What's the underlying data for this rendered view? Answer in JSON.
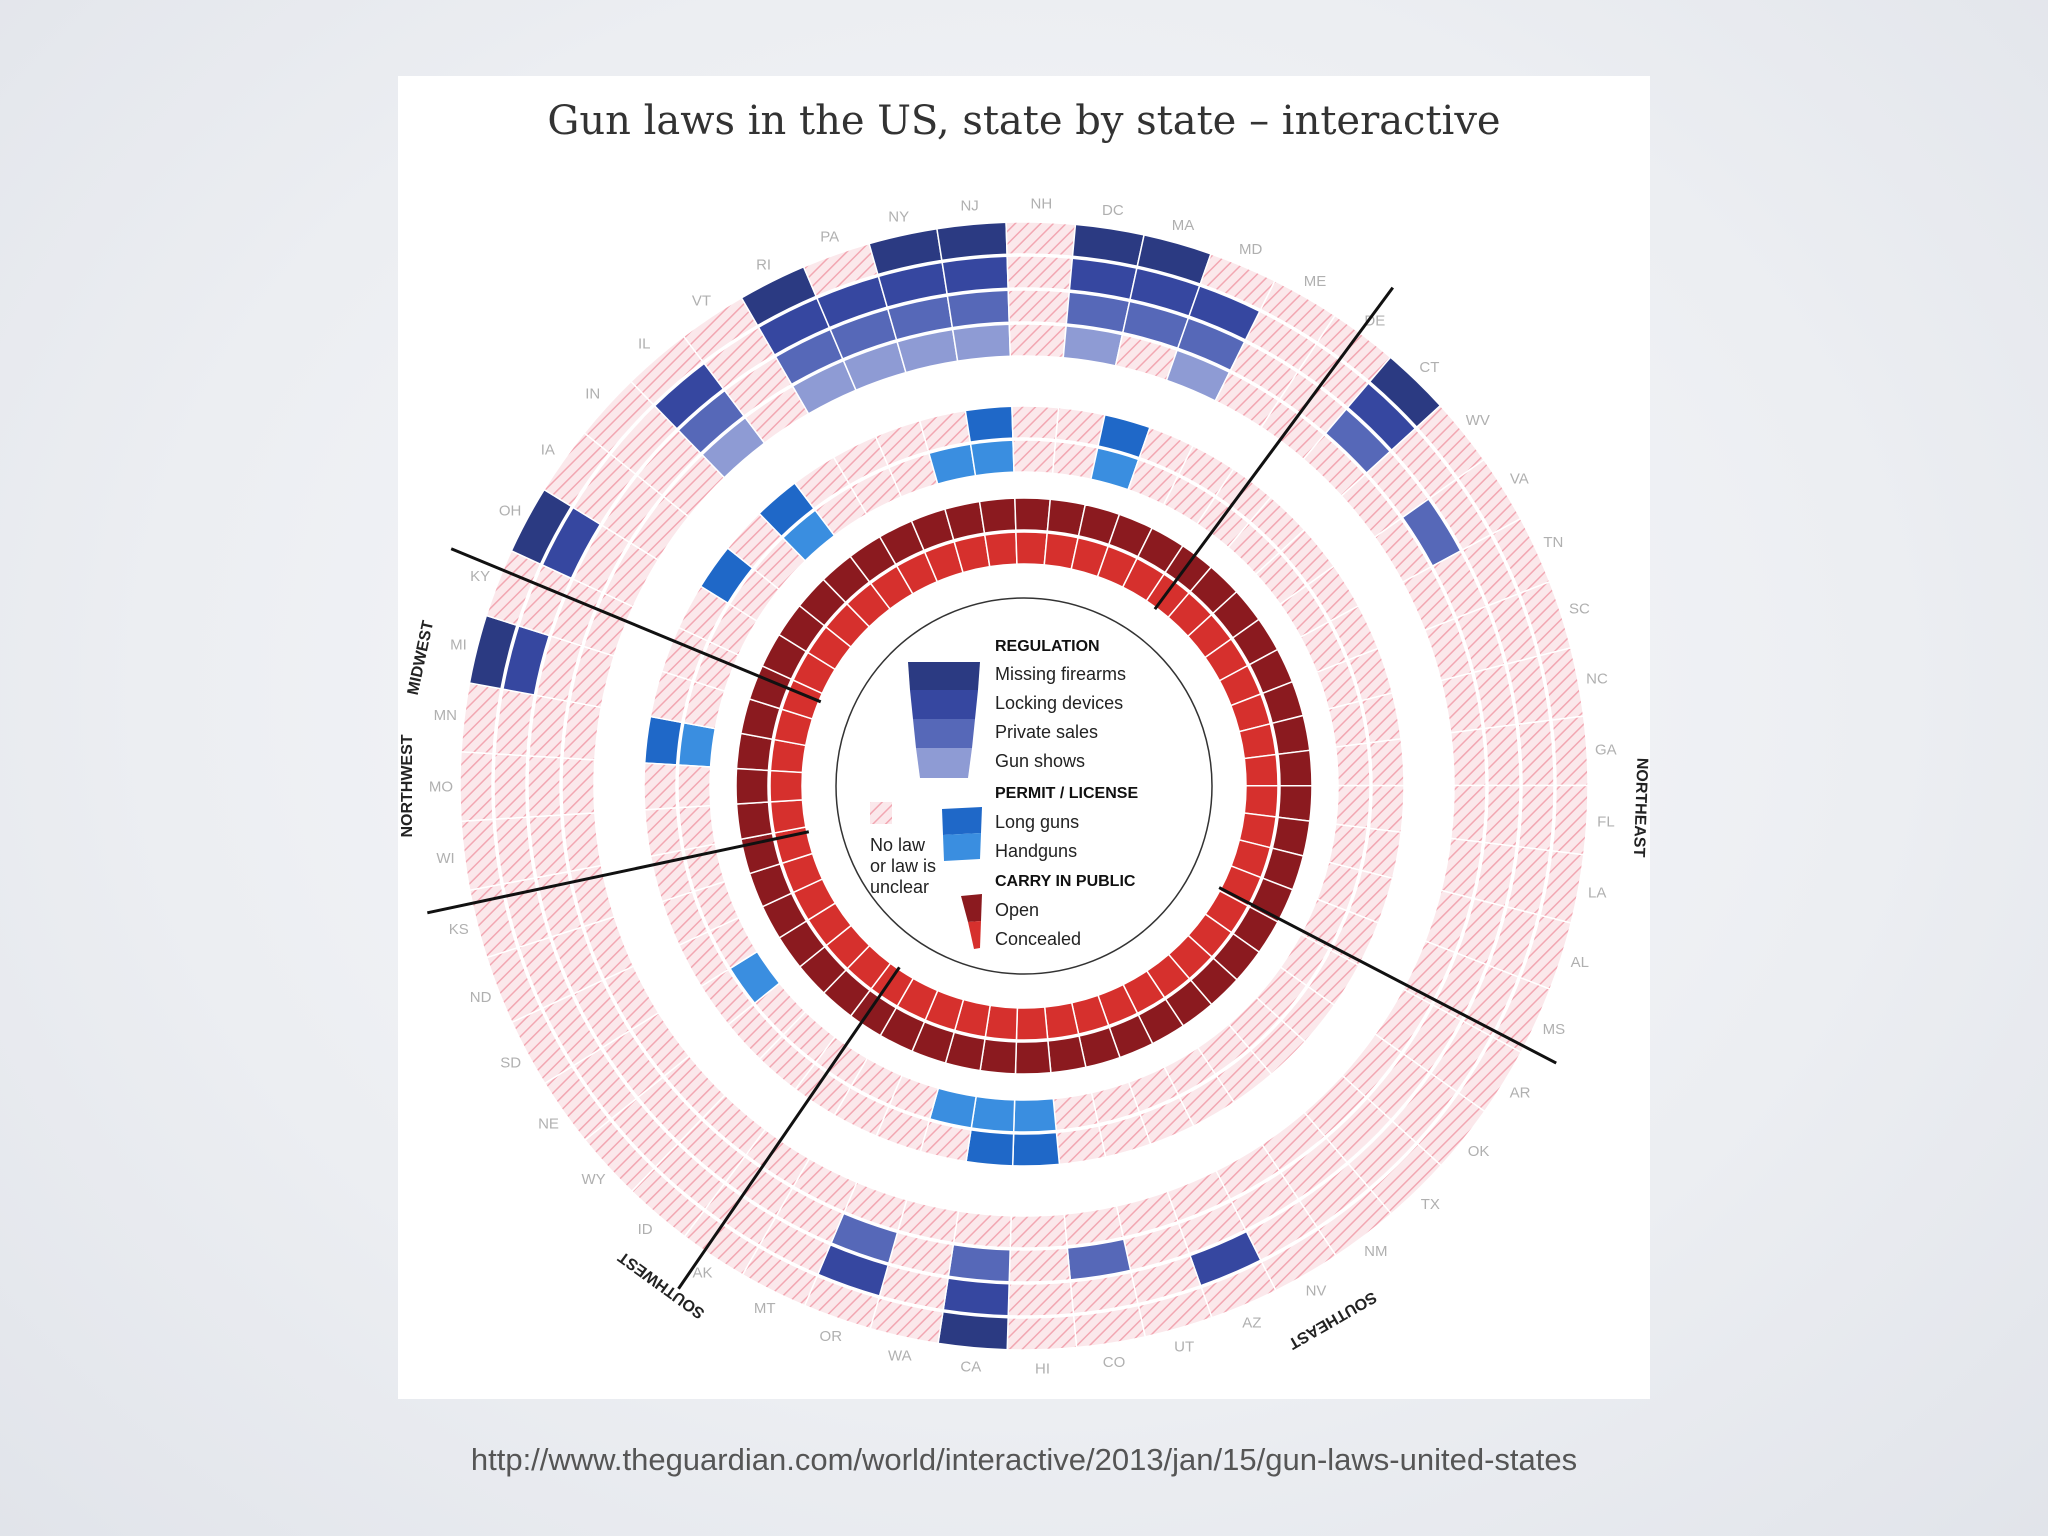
{
  "title": "Gun laws in the US, state by state – interactive",
  "source_url": "http://www.theguardian.com/world/interactive/2013/jan/15/gun-laws-united-states",
  "colors": {
    "no_law": "#f6d3d8",
    "no_law_hatch": "#f2a7b2",
    "regulation": [
      "#2b3a82",
      "#3647a0",
      "#5668b8",
      "#8e9bd4"
    ],
    "permit": [
      "#1f68c8",
      "#3a8ee0"
    ],
    "carry": [
      "#8b1a1f",
      "#d6302d"
    ],
    "permit_light": "#6fb0ee"
  },
  "chart_data": {
    "type": "radial-heatmap",
    "title": "Gun laws in the US, state by state – interactive",
    "regions": [
      "MIDWEST",
      "NORTHEAST",
      "SOUTHEAST",
      "SOUTHWEST",
      "NORTHWEST"
    ],
    "states": [
      "MN",
      "MI",
      "KY",
      "OH",
      "IA",
      "IN",
      "IL",
      "VT",
      "RI",
      "PA",
      "NY",
      "NJ",
      "NH",
      "DC",
      "MA",
      "MD",
      "ME",
      "DE",
      "CT",
      "WV",
      "VA",
      "TN",
      "SC",
      "NC",
      "GA",
      "FL",
      "LA",
      "AL",
      "MS",
      "AR",
      "OK",
      "TX",
      "NM",
      "NV",
      "AZ",
      "UT",
      "CO",
      "HI",
      "CA",
      "WA",
      "OR",
      "MT",
      "AK",
      "ID",
      "WY",
      "NE",
      "SD",
      "ND",
      "KS",
      "WI",
      "MO"
    ],
    "rings": [
      {
        "group": "REGULATION",
        "name": "Missing firearms"
      },
      {
        "group": "REGULATION",
        "name": "Locking devices"
      },
      {
        "group": "REGULATION",
        "name": "Private sales"
      },
      {
        "group": "REGULATION",
        "name": "Gun shows"
      },
      {
        "group": "PERMIT / LICENSE",
        "name": "Long guns"
      },
      {
        "group": "PERMIT / LICENSE",
        "name": "Handguns"
      },
      {
        "group": "CARRY IN PUBLIC",
        "name": "Open"
      },
      {
        "group": "CARRY IN PUBLIC",
        "name": "Concealed"
      }
    ],
    "laws": {
      "MI": [
        1,
        1,
        0,
        0,
        0,
        0,
        1,
        1
      ],
      "OH": [
        1,
        1,
        0,
        0,
        0,
        0,
        1,
        1
      ],
      "IL": [
        0,
        1,
        1,
        1,
        1,
        1,
        1,
        1
      ],
      "RI": [
        1,
        1,
        1,
        1,
        0,
        0,
        1,
        1
      ],
      "PA": [
        0,
        1,
        1,
        1,
        0,
        0,
        1,
        1
      ],
      "NY": [
        1,
        1,
        1,
        1,
        0,
        1,
        1,
        1
      ],
      "NJ": [
        1,
        1,
        1,
        1,
        1,
        1,
        1,
        1
      ],
      "DC": [
        1,
        1,
        1,
        1,
        0,
        0,
        1,
        1
      ],
      "MA": [
        1,
        1,
        1,
        0,
        1,
        1,
        1,
        1
      ],
      "MD": [
        0,
        1,
        1,
        1,
        0,
        0,
        1,
        1
      ],
      "CT": [
        1,
        1,
        1,
        0,
        0,
        0,
        1,
        1
      ],
      "VA": [
        0,
        0,
        1,
        0,
        0,
        0,
        1,
        1
      ],
      "AL": [
        0,
        0,
        0,
        0,
        0,
        0,
        1,
        1
      ],
      "CA": [
        1,
        1,
        1,
        0,
        1,
        1,
        1,
        1
      ],
      "HI": [
        0,
        0,
        0,
        0,
        1,
        1,
        1,
        1
      ],
      "OR": [
        0,
        1,
        1,
        0,
        0,
        0,
        1,
        1
      ],
      "WA": [
        0,
        0,
        0,
        0,
        0,
        1,
        1,
        1
      ],
      "CO": [
        0,
        0,
        1,
        0,
        0,
        0,
        1,
        1
      ],
      "AZ": [
        0,
        1,
        0,
        0,
        0,
        0,
        1,
        1
      ],
      "NE": [
        0,
        0,
        0,
        0,
        0,
        1,
        1,
        1
      ],
      "MN": [
        0,
        0,
        0,
        0,
        1,
        1,
        1,
        1
      ],
      "IA": [
        0,
        0,
        0,
        0,
        1,
        0,
        1,
        1
      ],
      "IN": [
        0,
        0,
        0,
        0,
        0,
        0,
        1,
        1
      ],
      "GA": [
        0,
        0,
        0,
        0,
        0,
        0,
        1,
        1
      ],
      "TX": [
        0,
        0,
        0,
        0,
        0,
        0,
        1,
        1
      ]
    }
  },
  "legend": {
    "regulation_head": "REGULATION",
    "regulation_items": [
      "Missing firearms",
      "Locking devices",
      "Private sales",
      "Gun shows"
    ],
    "permit_head": "PERMIT / LICENSE",
    "permit_items": [
      "Long guns",
      "Handguns"
    ],
    "carry_head": "CARRY IN PUBLIC",
    "carry_items": [
      "Open",
      "Concealed"
    ],
    "no_law_lines": [
      "No law",
      "or law is",
      "unclear"
    ]
  }
}
